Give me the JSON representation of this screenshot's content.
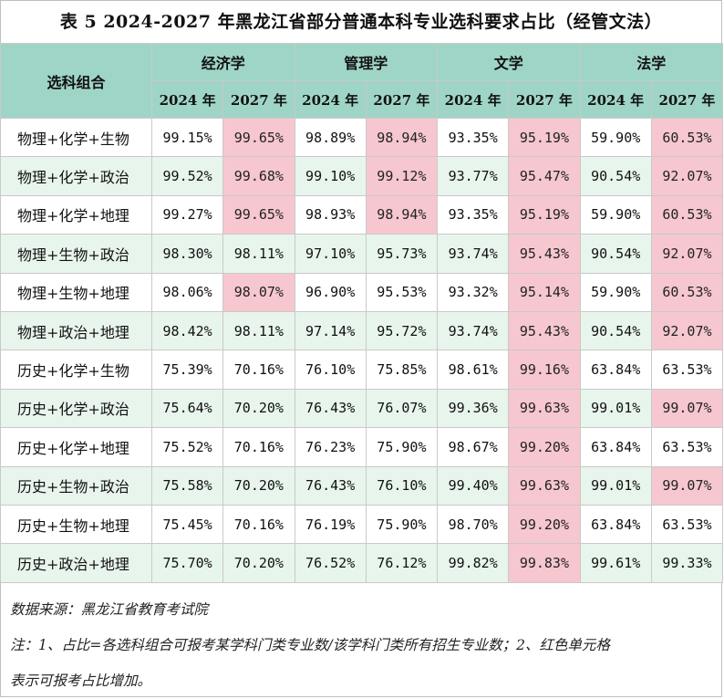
{
  "title": "表 5 2024-2027 年黑龙江省部分普通本科专业选科要求占比（经管文法）",
  "header": {
    "combo_label": "选科组合",
    "groups": [
      "经济学",
      "管理学",
      "文学",
      "法学"
    ],
    "years": [
      "2024 年",
      "2027 年"
    ]
  },
  "colors": {
    "header_bg": "#9fd5c7",
    "row_alt_bg": "#e8f5ec",
    "increase_bg": "#f6c7cf"
  },
  "rows": [
    {
      "combo": "物理+化学+生物",
      "values": [
        "99.15%",
        "99.65%",
        "98.89%",
        "98.94%",
        "93.35%",
        "95.19%",
        "59.90%",
        "60.53%"
      ],
      "up": [
        1,
        3,
        5,
        7
      ]
    },
    {
      "combo": "物理+化学+政治",
      "values": [
        "99.52%",
        "99.68%",
        "99.10%",
        "99.12%",
        "93.77%",
        "95.47%",
        "90.54%",
        "92.07%"
      ],
      "up": [
        1,
        3,
        5,
        7
      ]
    },
    {
      "combo": "物理+化学+地理",
      "values": [
        "99.27%",
        "99.65%",
        "98.93%",
        "98.94%",
        "93.35%",
        "95.19%",
        "59.90%",
        "60.53%"
      ],
      "up": [
        1,
        3,
        5,
        7
      ]
    },
    {
      "combo": "物理+生物+政治",
      "values": [
        "98.30%",
        "98.11%",
        "97.10%",
        "95.73%",
        "93.74%",
        "95.43%",
        "90.54%",
        "92.07%"
      ],
      "up": [
        5,
        7
      ]
    },
    {
      "combo": "物理+生物+地理",
      "values": [
        "98.06%",
        "98.07%",
        "96.90%",
        "95.53%",
        "93.32%",
        "95.14%",
        "59.90%",
        "60.53%"
      ],
      "up": [
        1,
        5,
        7
      ]
    },
    {
      "combo": "物理+政治+地理",
      "values": [
        "98.42%",
        "98.11%",
        "97.14%",
        "95.72%",
        "93.74%",
        "95.43%",
        "90.54%",
        "92.07%"
      ],
      "up": [
        5,
        7
      ]
    },
    {
      "combo": "历史+化学+生物",
      "values": [
        "75.39%",
        "70.16%",
        "76.10%",
        "75.85%",
        "98.61%",
        "99.16%",
        "63.84%",
        "63.53%"
      ],
      "up": [
        5
      ]
    },
    {
      "combo": "历史+化学+政治",
      "values": [
        "75.64%",
        "70.20%",
        "76.43%",
        "76.07%",
        "99.36%",
        "99.63%",
        "99.01%",
        "99.07%"
      ],
      "up": [
        5,
        7
      ]
    },
    {
      "combo": "历史+化学+地理",
      "values": [
        "75.52%",
        "70.16%",
        "76.23%",
        "75.90%",
        "98.67%",
        "99.20%",
        "63.84%",
        "63.53%"
      ],
      "up": [
        5
      ]
    },
    {
      "combo": "历史+生物+政治",
      "values": [
        "75.58%",
        "70.20%",
        "76.43%",
        "76.10%",
        "99.40%",
        "99.63%",
        "99.01%",
        "99.07%"
      ],
      "up": [
        5,
        7
      ]
    },
    {
      "combo": "历史+生物+地理",
      "values": [
        "75.45%",
        "70.16%",
        "76.19%",
        "75.90%",
        "98.70%",
        "99.20%",
        "63.84%",
        "63.53%"
      ],
      "up": [
        5
      ]
    },
    {
      "combo": "历史+政治+地理",
      "values": [
        "75.70%",
        "70.20%",
        "76.52%",
        "76.12%",
        "99.82%",
        "99.83%",
        "99.61%",
        "99.33%"
      ],
      "up": [
        5
      ]
    }
  ],
  "notes": {
    "source": "数据来源：黑龙江省教育考试院",
    "note_line1": "注：1、占比=各选科组合可报考某学科门类专业数/该学科门类所有招生专业数；2、红色单元格",
    "note_line2": "表示可报考占比增加。"
  }
}
